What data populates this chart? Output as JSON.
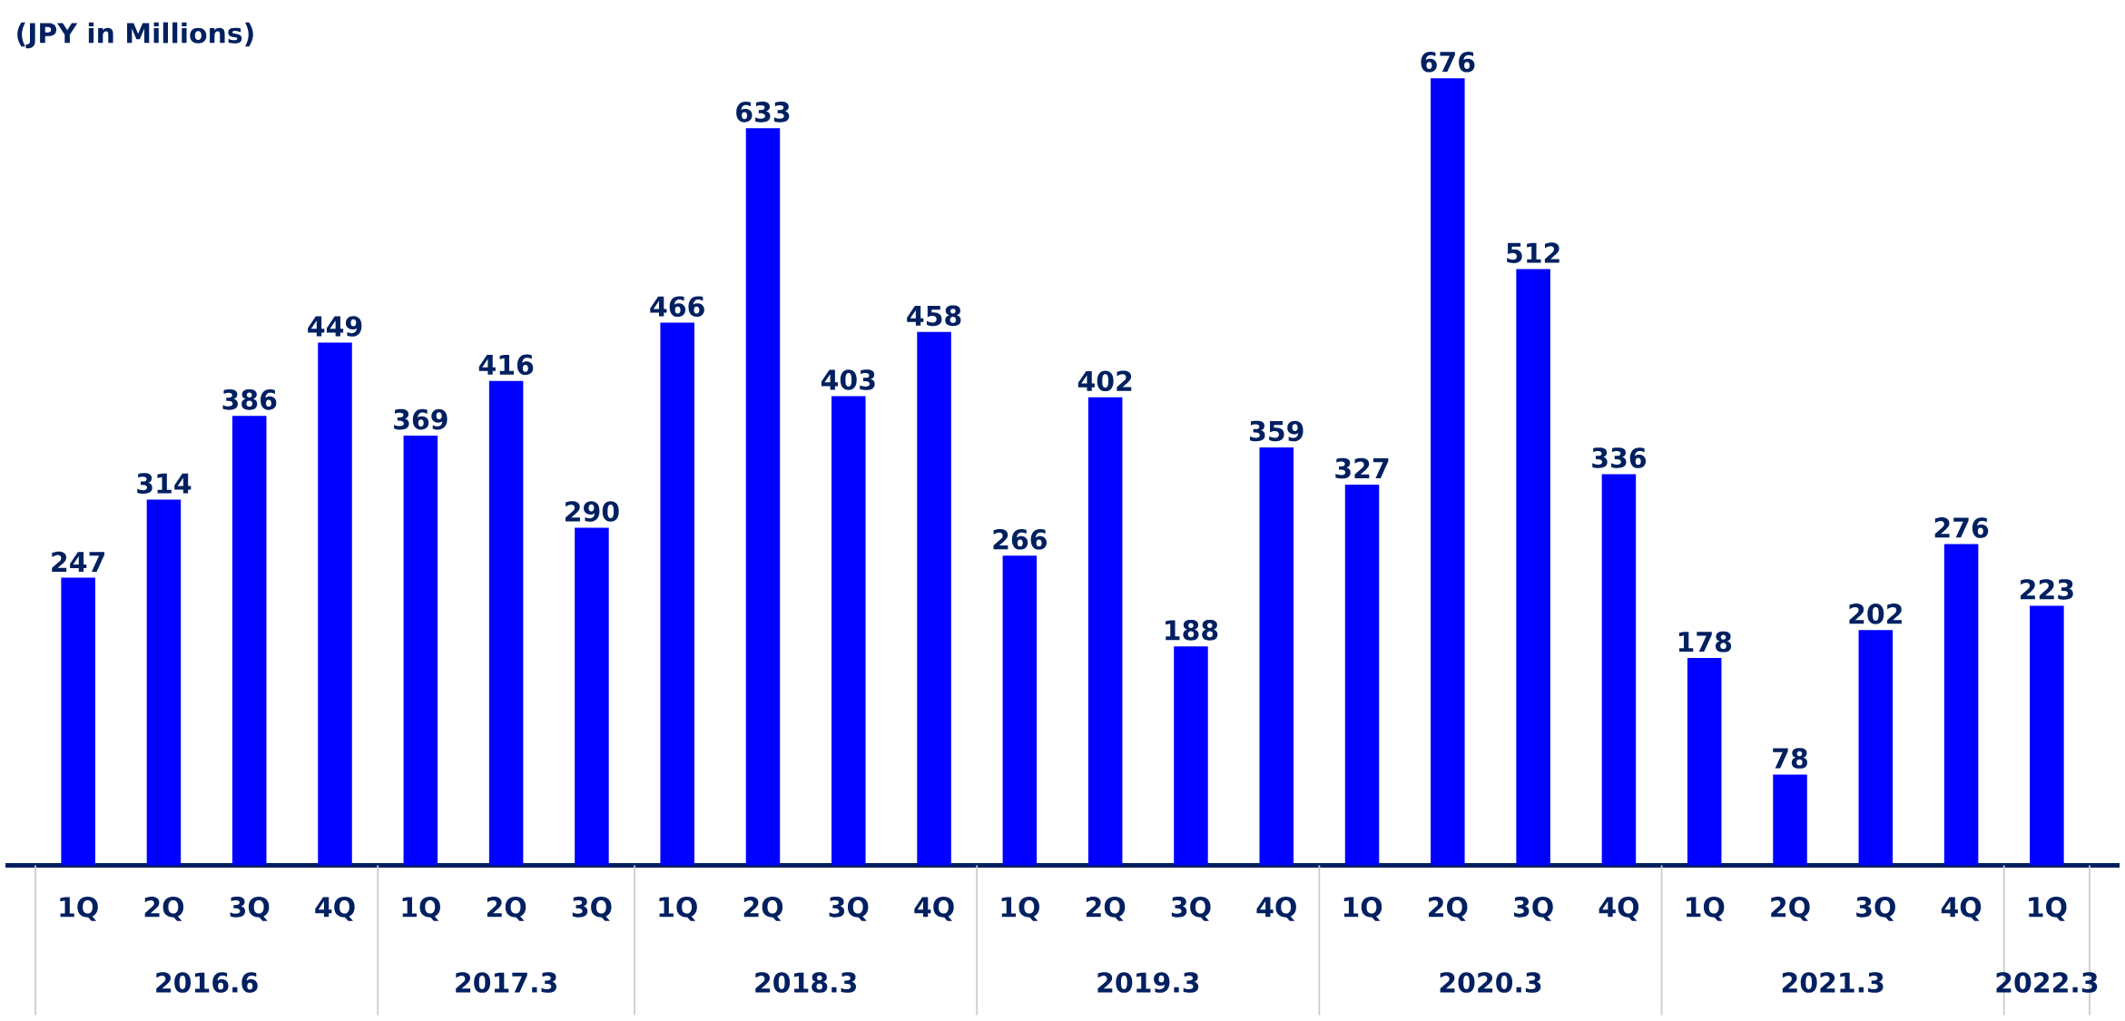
{
  "chart_data": {
    "type": "bar",
    "ylabel": "(JPY in Millions)",
    "categories": [
      "1Q",
      "2Q",
      "3Q",
      "4Q",
      "1Q",
      "2Q",
      "3Q",
      "1Q",
      "2Q",
      "3Q",
      "4Q",
      "1Q",
      "2Q",
      "3Q",
      "4Q",
      "1Q",
      "2Q",
      "3Q",
      "4Q",
      "1Q",
      "2Q",
      "3Q",
      "4Q",
      "1Q"
    ],
    "values": [
      247,
      314,
      386,
      449,
      369,
      416,
      290,
      466,
      633,
      403,
      458,
      266,
      402,
      188,
      359,
      327,
      676,
      512,
      336,
      178,
      78,
      202,
      276,
      223
    ],
    "color": "#0000ff",
    "data_labels": true,
    "annotations": [
      "2016.6",
      "2017.3",
      "2018.3",
      "2019.3",
      "2020.3",
      "2021.3",
      "2022.3"
    ]
  }
}
